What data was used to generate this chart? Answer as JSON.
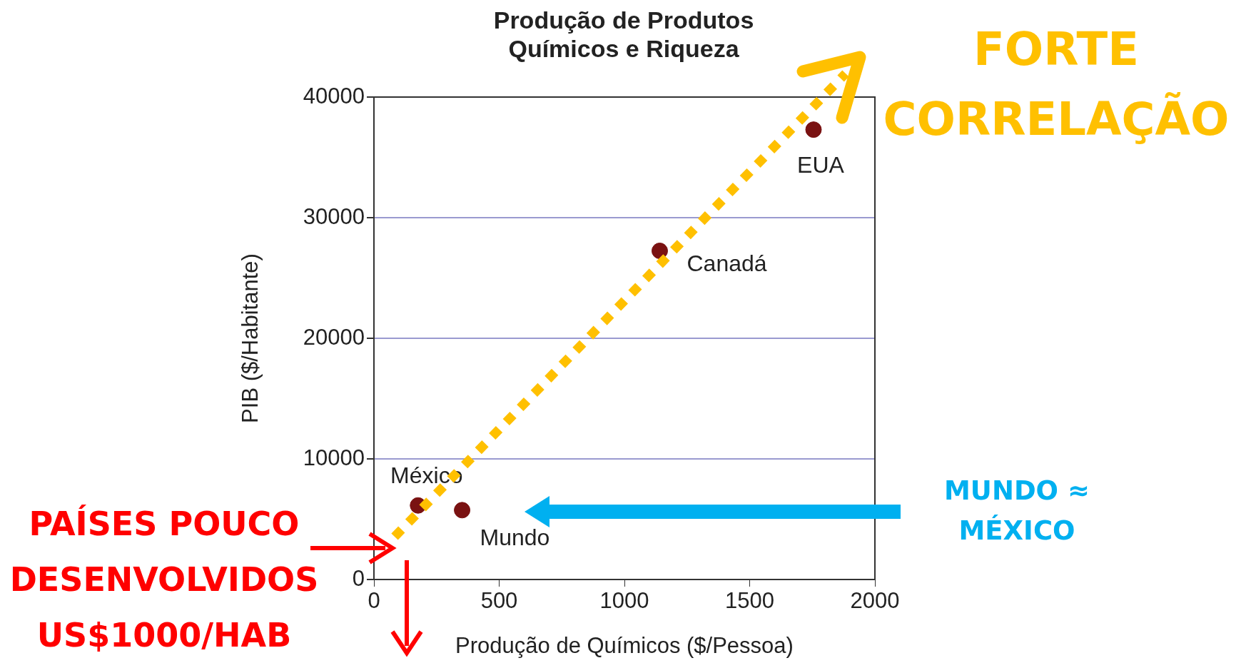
{
  "chart_data": {
    "type": "scatter",
    "title": "Produção de Produtos\nQuímicos e Riqueza",
    "xlabel": "Produção de Químicos ($/Pessoa)",
    "ylabel": "PIB ($/Habitante)",
    "x": [
      176,
      352,
      1141,
      1755
    ],
    "series": [
      {
        "color": "#7a1212",
        "values": [
          6140,
          5750,
          27250,
          37300
        ]
      }
    ],
    "xlim": [
      0,
      2000
    ],
    "xticks": [
      0,
      500,
      1000,
      1500,
      2000
    ],
    "ylim": [
      0,
      40000
    ],
    "yticks": [
      0,
      10000,
      20000,
      30000,
      40000
    ],
    "grid": "y",
    "legend": false,
    "marker": "circle",
    "annotations": [
      {
        "text": "México",
        "x": 176,
        "y": 6140
      },
      {
        "text": "Mundo",
        "x": 352,
        "y": 5750
      },
      {
        "text": "Canadá",
        "x": 1141,
        "y": 27250
      },
      {
        "text": "EUA",
        "x": 1755,
        "y": 37300
      },
      "FORTE\nCORRELAÇÃO",
      "PAÍSES POUCO\nDESENVOLVIDOS\nUS$1000/HAB",
      "MUNDO ≈\nMÉXICO"
    ]
  }
}
